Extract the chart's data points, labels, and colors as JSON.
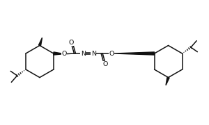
{
  "bg_color": "#ffffff",
  "line_color": "#111111",
  "line_width": 1.1,
  "figsize": [
    3.0,
    1.8
  ],
  "dpi": 100,
  "xlim": [
    0,
    10
  ],
  "ylim": [
    0,
    6
  ]
}
